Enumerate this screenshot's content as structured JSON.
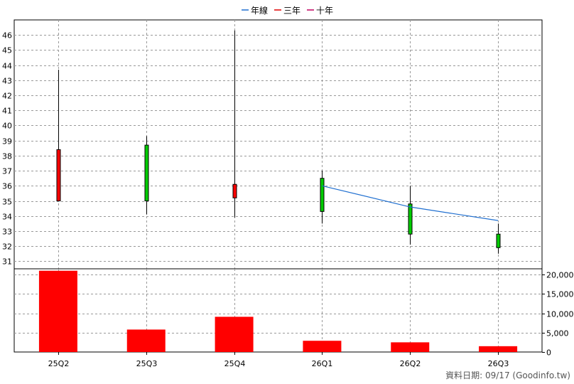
{
  "chart_data": {
    "type": "candlestick",
    "legend": {
      "placement": "top-center",
      "items": [
        {
          "label": "年線",
          "color": "#1f6fd0"
        },
        {
          "label": "三年",
          "color": "#e00000"
        },
        {
          "label": "十年",
          "color": "#c00060"
        }
      ]
    },
    "categories": [
      "25Q2",
      "25Q3",
      "25Q4",
      "26Q1",
      "26Q2",
      "26Q3"
    ],
    "price_axis": {
      "min": 30.5,
      "max": 47,
      "ticks": [
        31,
        32,
        33,
        34,
        35,
        36,
        37,
        38,
        39,
        40,
        41,
        42,
        43,
        44,
        45,
        46
      ]
    },
    "candles": [
      {
        "open": 35.0,
        "close": 38.4,
        "high": 43.7,
        "low": 35.0,
        "color": "#ff0000"
      },
      {
        "open": 38.7,
        "close": 35.0,
        "high": 39.3,
        "low": 34.1,
        "color": "#00cc00"
      },
      {
        "open": 35.2,
        "close": 36.1,
        "high": 46.3,
        "low": 33.9,
        "color": "#ff0000"
      },
      {
        "open": 36.5,
        "close": 34.3,
        "high": 37.0,
        "low": 33.5,
        "color": "#00cc00"
      },
      {
        "open": 34.8,
        "close": 32.8,
        "high": 36.0,
        "low": 32.1,
        "color": "#00cc00"
      },
      {
        "open": 32.8,
        "close": 31.9,
        "high": 33.5,
        "low": 31.5,
        "color": "#00cc00"
      }
    ],
    "moving_average": {
      "name": "年線",
      "color": "#1f6fd0",
      "points": [
        {
          "category": "26Q1",
          "value": 36.0
        },
        {
          "category": "26Q2",
          "value": 34.6
        },
        {
          "category": "26Q3",
          "value": 33.7
        }
      ]
    },
    "volume_axis": {
      "min": 0,
      "max": 21500,
      "ticks": [
        0,
        5000,
        10000,
        15000,
        20000
      ],
      "tick_labels": [
        "0",
        "5,000",
        "10,000",
        "15,000",
        "20,000"
      ]
    },
    "volume": {
      "color": "#ff0000",
      "values": [
        21000,
        5800,
        9100,
        2900,
        2500,
        1500
      ]
    },
    "grid": true
  },
  "footer": "資料日期: 09/17  (Goodinfo.tw)"
}
